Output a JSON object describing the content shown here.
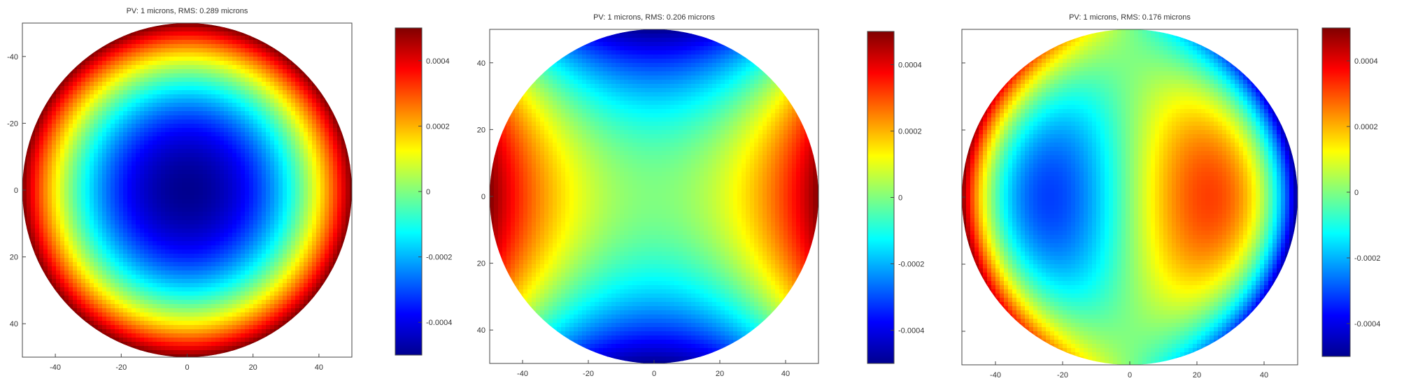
{
  "figure": {
    "colormap": [
      "#00008f",
      "#0000ff",
      "#0080ff",
      "#00ffff",
      "#80ff80",
      "#ffff00",
      "#ff8000",
      "#ff0000",
      "#800000"
    ],
    "grid": false,
    "legend": "colorbar-right"
  },
  "chart_data": [
    {
      "type": "heatmap",
      "title": "PV: 1 microns, RMS: 0.289 microns",
      "aberration": "defocus",
      "pupil_radius": 50,
      "xlim": [
        -50,
        50
      ],
      "ylim": [
        -50,
        50
      ],
      "x_ticks": [
        "-40",
        "-20",
        "0",
        "20",
        "40"
      ],
      "y_ticks": [
        "-40",
        "-20",
        "0",
        "20",
        "40"
      ],
      "clim": [
        -0.0005,
        0.0005
      ],
      "colorbar_ticks": [
        "0.0004",
        "0.0002",
        "0",
        "-0.0002",
        "-0.0004"
      ],
      "center_value": -0.0005,
      "edge_value": 0.0005
    },
    {
      "type": "heatmap",
      "title": "PV: 1 microns, RMS: 0.206 microns",
      "aberration": "astigmatism",
      "pupil_radius": 50,
      "xlim": [
        -50,
        50
      ],
      "ylim": [
        -50,
        50
      ],
      "x_ticks": [
        "-40",
        "-20",
        "0",
        "20",
        "40"
      ],
      "y_ticks": [
        "40",
        "20",
        "0",
        "20",
        "40"
      ],
      "clim": [
        -0.0005,
        0.0005
      ],
      "colorbar_ticks": [
        "0.0004",
        "0.0002",
        "0",
        "-0.0002",
        "-0.0004"
      ],
      "left_right_edge_value": 0.0005,
      "top_bottom_edge_value": -0.0005
    },
    {
      "type": "heatmap",
      "title": "PV: 1 microns, RMS: 0.176 microns",
      "aberration": "coma",
      "pupil_radius": 50,
      "xlim": [
        -50,
        50
      ],
      "ylim": [
        -50,
        50
      ],
      "x_ticks": [
        "-40",
        "-20",
        "0",
        "20",
        "40"
      ],
      "y_ticks": [
        "",
        "",
        "",
        "",
        ""
      ],
      "clim": [
        -0.0005,
        0.0005
      ],
      "colorbar_ticks": [
        "0.0004",
        "0.0002",
        "0",
        "-0.0002",
        "-0.0004"
      ],
      "extremum_x": 23,
      "extremum_value": 0.00032
    }
  ]
}
